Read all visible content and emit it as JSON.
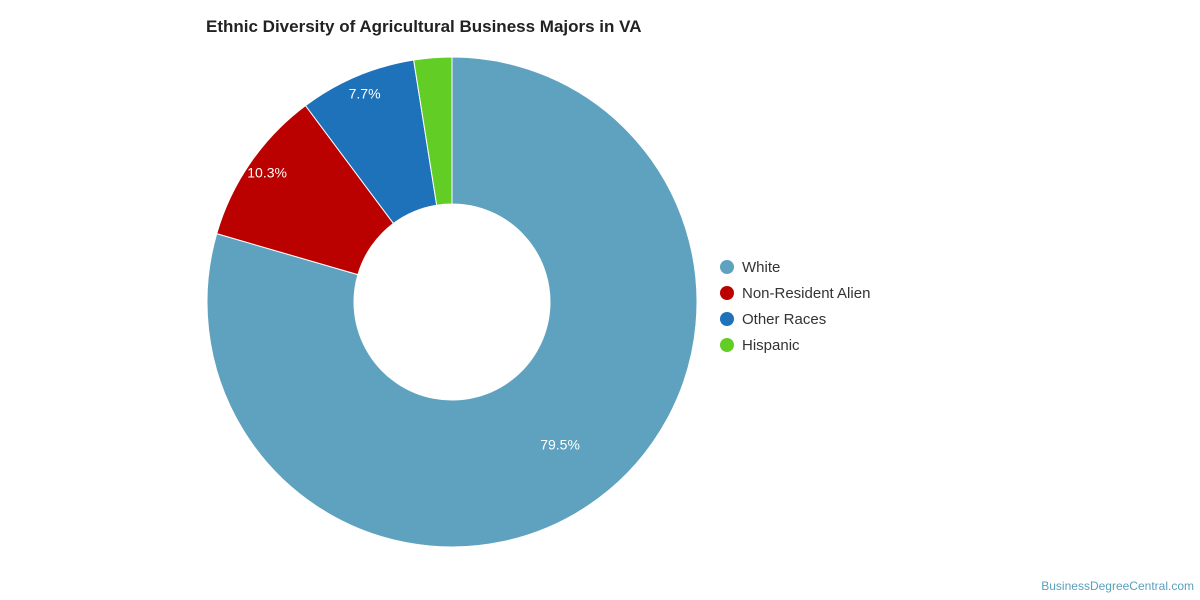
{
  "chart_data": {
    "type": "pie",
    "title": "Ethnic Diversity of Agricultural Business Majors in VA",
    "categories": [
      "White",
      "Non-Resident Alien",
      "Other Races",
      "Hispanic"
    ],
    "values": [
      79.5,
      10.3,
      7.7,
      2.5
    ],
    "data_labels": [
      "79.5%",
      "10.3%",
      "7.7%",
      ""
    ],
    "colors": [
      "#5fa2bf",
      "#bb0000",
      "#1e72ba",
      "#62cd24"
    ],
    "legend_position": "right",
    "donut": true
  },
  "credit": "BusinessDegreeCentral.com"
}
